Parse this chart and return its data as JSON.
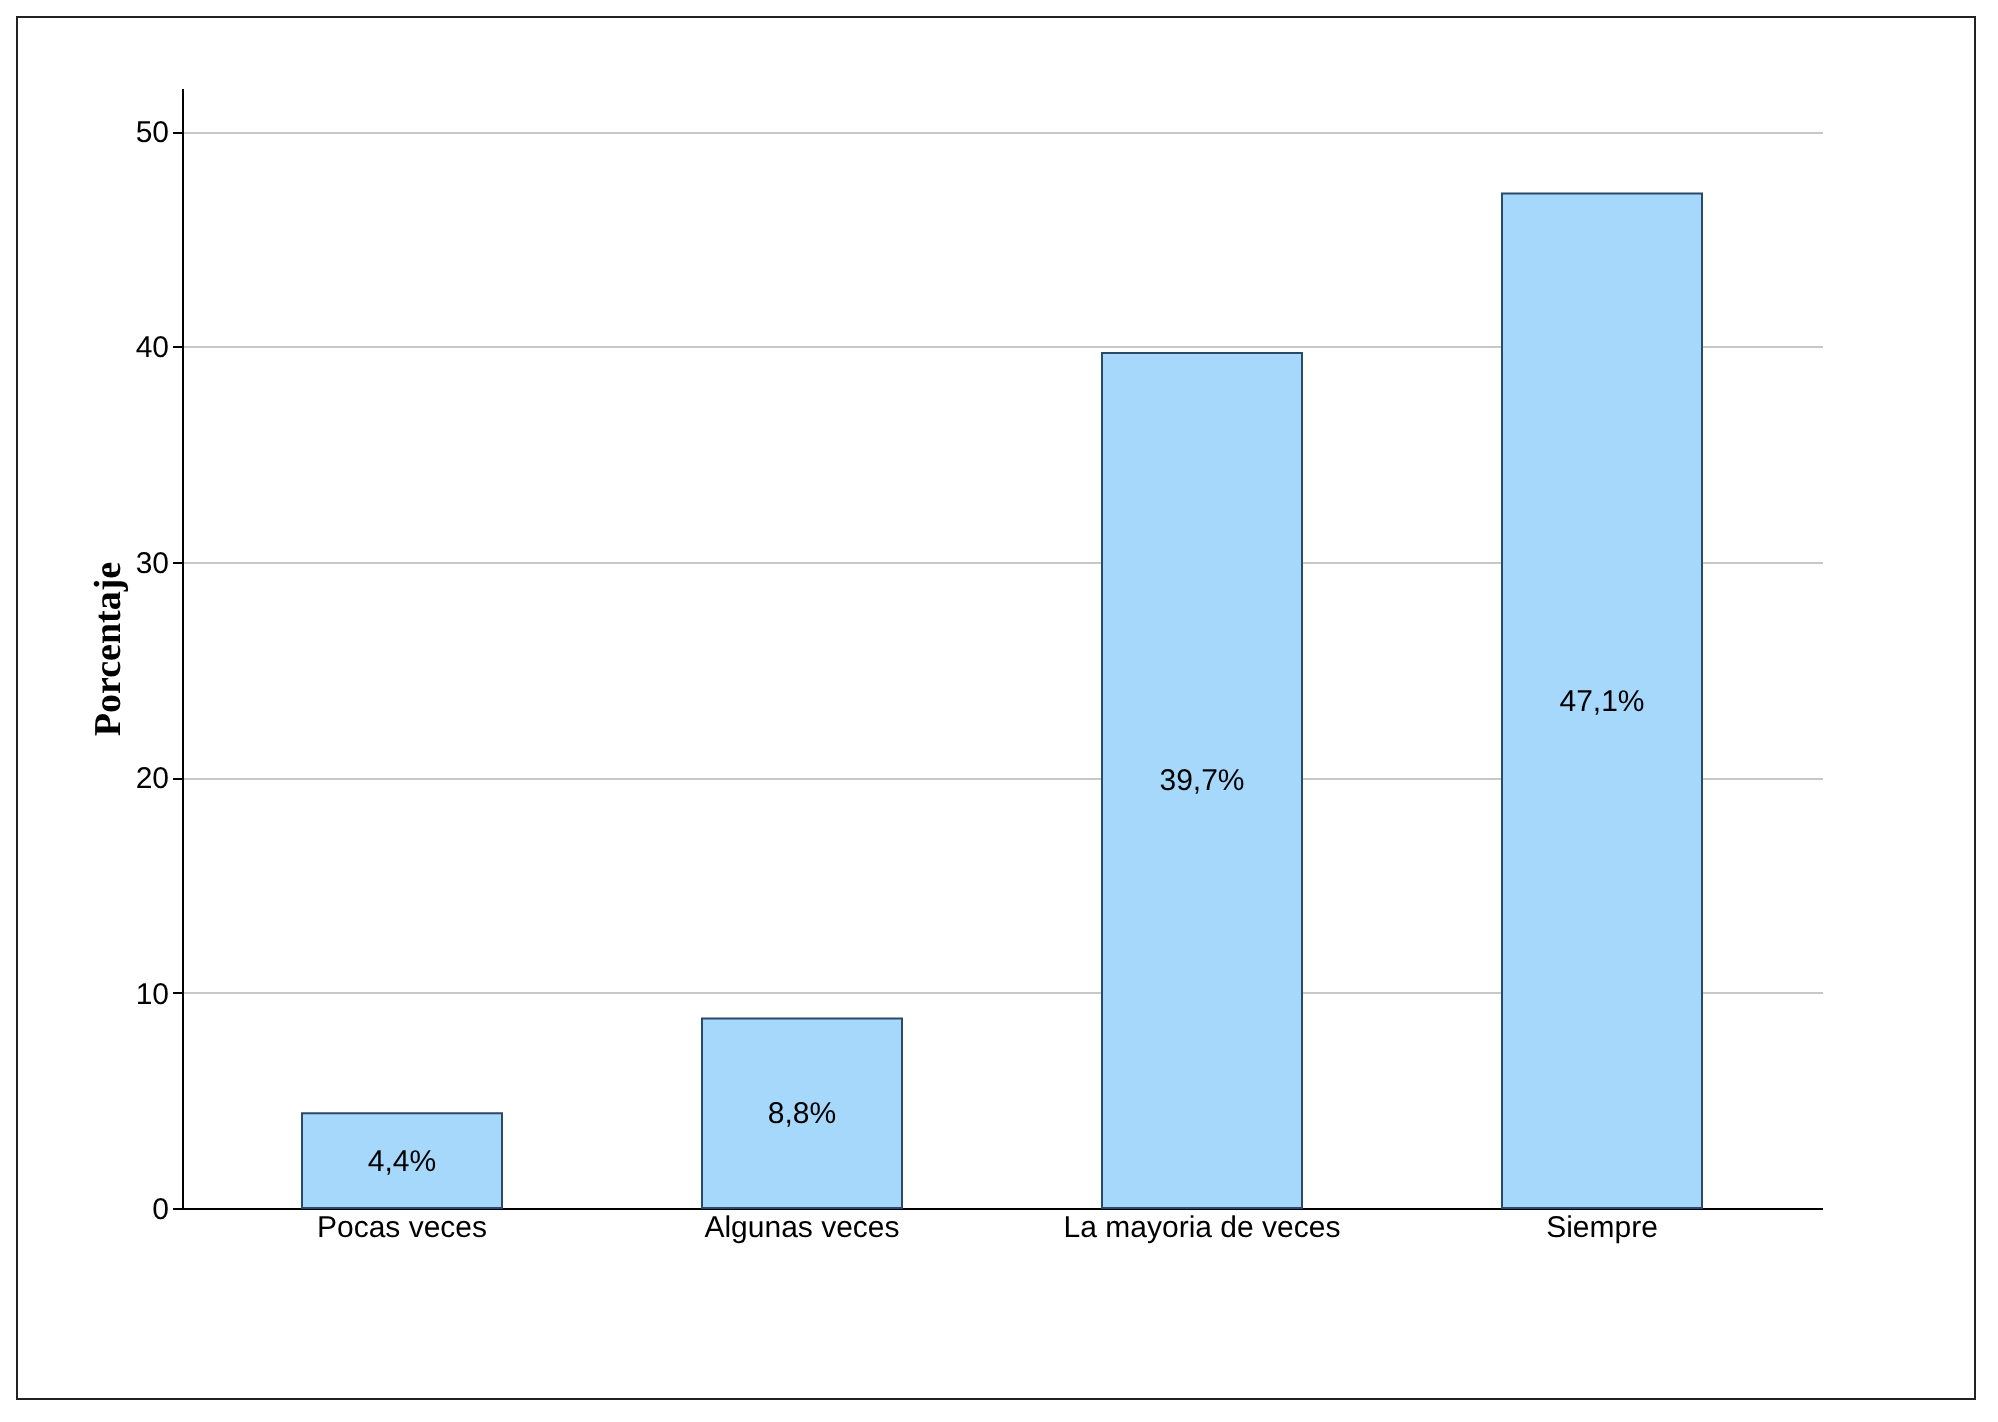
{
  "chart_data": {
    "type": "bar",
    "ylabel": "Porcentaje",
    "categories": [
      "Pocas veces",
      "Algunas veces",
      "La mayoria de veces",
      "Siempre"
    ],
    "values": [
      4.4,
      8.8,
      39.7,
      47.1
    ],
    "value_labels": [
      "4,4%",
      "8,8%",
      "39,7%",
      "47,1%"
    ],
    "color": "#a6d8fc",
    "ylim": [
      0,
      52
    ],
    "yticks": [
      0,
      10,
      20,
      30,
      40,
      50
    ],
    "grid": "y"
  }
}
